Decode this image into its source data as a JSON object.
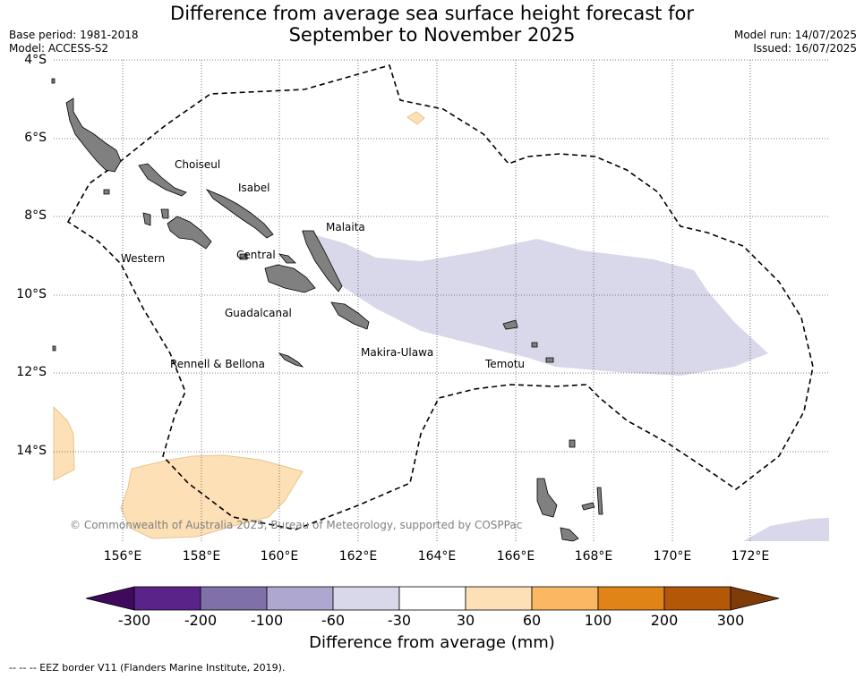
{
  "title_line1": "Difference from average sea surface height forecast for",
  "title_line2": "September to November 2025",
  "base_period": "Base period: 1981-2018",
  "model": "Model: ACCESS-S2",
  "model_run": "Model run: 14/07/2025",
  "issued": "Issued: 16/07/2025",
  "lat_labels": [
    "4°S",
    "6°S",
    "8°S",
    "10°S",
    "12°S",
    "14°S"
  ],
  "lon_labels": [
    "156°E",
    "158°E",
    "160°E",
    "162°E",
    "164°E",
    "166°E",
    "168°E",
    "170°E",
    "172°E"
  ],
  "province_labels": [
    "Choiseul",
    "Isabel",
    "Malaita",
    "Western",
    "Central",
    "Guadalcanal",
    "Makira-Ulawa",
    "Temotu",
    "Rennell & Bellona"
  ],
  "copyright": "© Commonwealth of Australia 2025, Bureau of Meteorology, supported by COSPPac",
  "colorbar": {
    "label": "Difference from average (mm)",
    "ticks": [
      "-300",
      "-200",
      "-100",
      "-60",
      "-30",
      "30",
      "60",
      "100",
      "200",
      "300"
    ],
    "colors": [
      "#3f0a5e",
      "#5a2389",
      "#8070aa",
      "#aea7d0",
      "#d8d8ea",
      "#ffffff",
      "#fde0b6",
      "#fbb862",
      "#e08418",
      "#b35806",
      "#7f3b08"
    ]
  },
  "footnote": "--  --  -- EEZ border V11 (Flanders Marine Institute, 2019).",
  "colors": {
    "land": "#808080",
    "anomaly_negative": "#d8d8ea",
    "anomaly_positive": "#fde0b6"
  }
}
